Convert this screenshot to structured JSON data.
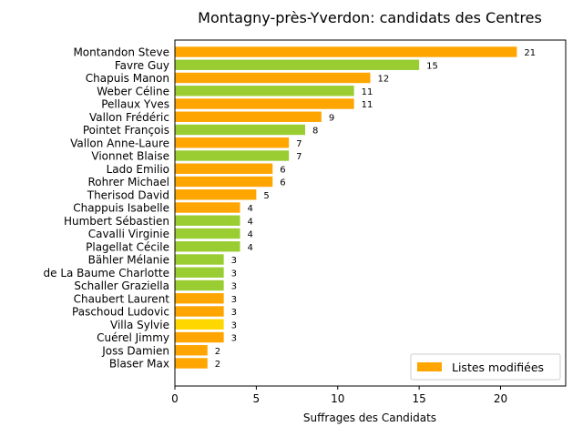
{
  "chart_data": {
    "type": "bar",
    "orientation": "horizontal",
    "title": "Montagny-près-Yverdon: candidats des Centres",
    "xlabel": "Suffrages des Candidats",
    "ylabel": "",
    "xlim": [
      0,
      24
    ],
    "xticks": [
      "0",
      "5",
      "10",
      "15",
      "20"
    ],
    "grid": false,
    "legend": {
      "position": "lower-right",
      "entries": [
        {
          "label": "Listes modifiées",
          "color": "#ffa500"
        }
      ]
    },
    "colors": {
      "orange": "#ffa500",
      "green": "#9acd32",
      "yellow": "#ffd700"
    },
    "bars": [
      {
        "name": "Montandon Steve",
        "value": 21,
        "color": "#ffa500"
      },
      {
        "name": "Favre Guy",
        "value": 15,
        "color": "#9acd32"
      },
      {
        "name": "Chapuis Manon",
        "value": 12,
        "color": "#ffa500"
      },
      {
        "name": "Weber Céline",
        "value": 11,
        "color": "#9acd32"
      },
      {
        "name": "Pellaux Yves",
        "value": 11,
        "color": "#ffa500"
      },
      {
        "name": "Vallon Frédéric",
        "value": 9,
        "color": "#ffa500"
      },
      {
        "name": "Pointet François",
        "value": 8,
        "color": "#9acd32"
      },
      {
        "name": "Vallon Anne-Laure",
        "value": 7,
        "color": "#ffa500"
      },
      {
        "name": "Vionnet Blaise",
        "value": 7,
        "color": "#9acd32"
      },
      {
        "name": "Lado Emilio",
        "value": 6,
        "color": "#ffa500"
      },
      {
        "name": "Rohrer Michael",
        "value": 6,
        "color": "#ffa500"
      },
      {
        "name": "Therisod David",
        "value": 5,
        "color": "#ffa500"
      },
      {
        "name": "Chappuis Isabelle",
        "value": 4,
        "color": "#ffa500"
      },
      {
        "name": "Humbert Sébastien",
        "value": 4,
        "color": "#9acd32"
      },
      {
        "name": "Cavalli Virginie",
        "value": 4,
        "color": "#9acd32"
      },
      {
        "name": "Plagellat Cécile",
        "value": 4,
        "color": "#9acd32"
      },
      {
        "name": "Bähler Mélanie",
        "value": 3,
        "color": "#9acd32"
      },
      {
        "name": "de La Baume Charlotte",
        "value": 3,
        "color": "#9acd32"
      },
      {
        "name": "Schaller Graziella",
        "value": 3,
        "color": "#9acd32"
      },
      {
        "name": "Chaubert Laurent",
        "value": 3,
        "color": "#ffa500"
      },
      {
        "name": "Paschoud Ludovic",
        "value": 3,
        "color": "#ffa500"
      },
      {
        "name": "Villa Sylvie",
        "value": 3,
        "color": "#ffd700"
      },
      {
        "name": "Cuérel Jimmy",
        "value": 3,
        "color": "#ffa500"
      },
      {
        "name": "Joss Damien",
        "value": 2,
        "color": "#ffa500"
      },
      {
        "name": "Blaser Max",
        "value": 2,
        "color": "#ffa500"
      }
    ]
  }
}
